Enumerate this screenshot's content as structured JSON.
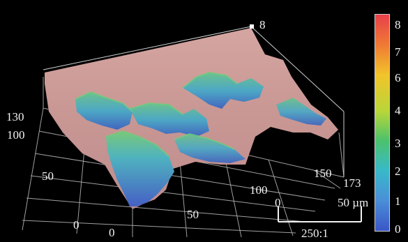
{
  "surface_plot": {
    "max_marker": "8",
    "axis_y_ticks": [
      "0",
      "50",
      "100",
      "130"
    ],
    "axis_x_ticks": [
      "0",
      "50",
      "100",
      "150",
      "173"
    ],
    "colorbar": {
      "ticks": [
        "8",
        "7",
        "6",
        "4",
        "3",
        "2",
        "1",
        "0"
      ],
      "colors_top_to_bottom": [
        "#e8404a",
        "#ef7a35",
        "#f2c42a",
        "#b7d63a",
        "#4cc26a",
        "#39b9c9",
        "#4a8fd8",
        "#3a56c7"
      ]
    },
    "scale_bar": {
      "start_label": "0",
      "end_label": "50 µm",
      "magnification": "250:1"
    },
    "colors": {
      "background": "#000000",
      "grid": "#cfcfcf",
      "surface_high": "#c89a98",
      "surface_low": "#3c72c4"
    }
  }
}
